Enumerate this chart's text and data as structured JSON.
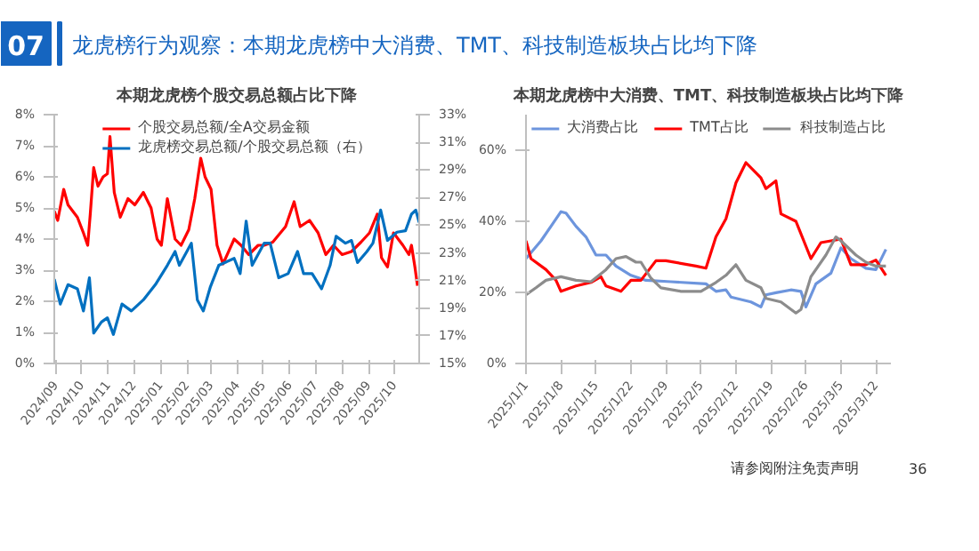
{
  "chart_data": [
    {
      "type": "other",
      "title": "龙虎榜行为观察：本期龙虎榜中大消费、TMT、科技制造板块占比均下降",
      "annotations": [
        "07"
      ]
    },
    {
      "type": "line",
      "title": "本期龙虎榜个股交易总额占比下降",
      "legend": "top",
      "marker": "none",
      "line_style": "solid",
      "xlim": [
        "2024-08-30",
        "2025-10-30"
      ],
      "xticks": [
        {
          "value": "2024-09-01",
          "label": "2024/09"
        },
        {
          "value": "2024-10-01",
          "label": "2024/10"
        },
        {
          "value": "2024-11-01",
          "label": "2024/11"
        },
        {
          "value": "2024-12-01",
          "label": "2024/12"
        },
        {
          "value": "2025-01-01",
          "label": "2025/01"
        },
        {
          "value": "2025-02-01",
          "label": "2025/02"
        },
        {
          "value": "2025-03-01",
          "label": "2025/03"
        },
        {
          "value": "2025-04-01",
          "label": "2025/04"
        },
        {
          "value": "2025-05-01",
          "label": "2025/05"
        },
        {
          "value": "2025-06-01",
          "label": "2025/06"
        },
        {
          "value": "2025-07-01",
          "label": "2025/07"
        },
        {
          "value": "2025-08-01",
          "label": "2025/08"
        },
        {
          "value": "2025-09-01",
          "label": "2025/09"
        },
        {
          "value": "2025-10-01",
          "label": "2025/10"
        }
      ],
      "ylim": [
        0,
        8
      ],
      "yticks": [
        {
          "value": 0,
          "label": "0%"
        },
        {
          "value": 1,
          "label": "1%"
        },
        {
          "value": 2,
          "label": "2%"
        },
        {
          "value": 3,
          "label": "3%"
        },
        {
          "value": 4,
          "label": "4%"
        },
        {
          "value": 5,
          "label": "5%"
        },
        {
          "value": 6,
          "label": "6%"
        },
        {
          "value": 7,
          "label": "7%"
        },
        {
          "value": 8,
          "label": "8%"
        }
      ],
      "y2lim": [
        15,
        33
      ],
      "y2ticks": [
        {
          "value": 15,
          "label": "15%"
        },
        {
          "value": 17,
          "label": "17%"
        },
        {
          "value": 19,
          "label": "19%"
        },
        {
          "value": 21,
          "label": "21%"
        },
        {
          "value": 23,
          "label": "23%"
        },
        {
          "value": 25,
          "label": "25%"
        },
        {
          "value": 27,
          "label": "27%"
        },
        {
          "value": 29,
          "label": "29%"
        },
        {
          "value": 31,
          "label": "31%"
        },
        {
          "value": 33,
          "label": "33%"
        }
      ],
      "series": [
        {
          "name": "个股交易总额/全A交易金额",
          "color": "#ff0000",
          "x": [
            "2024-08-30",
            "2024-09-03",
            "2024-09-10",
            "2024-09-15",
            "2024-09-26",
            "2024-10-03",
            "2024-10-08",
            "2024-10-11",
            "2024-10-15",
            "2024-10-20",
            "2024-10-26",
            "2024-10-31",
            "2024-11-03",
            "2024-11-08",
            "2024-11-15",
            "2024-11-24",
            "2024-12-02",
            "2024-12-12",
            "2024-12-21",
            "2024-12-28",
            "2025-01-02",
            "2025-01-09",
            "2025-01-18",
            "2025-01-25",
            "2025-02-03",
            "2025-02-10",
            "2025-02-17",
            "2025-02-22",
            "2025-03-01",
            "2025-03-08",
            "2025-03-15",
            "2025-03-28",
            "2025-04-05",
            "2025-04-14",
            "2025-04-25",
            "2025-05-02",
            "2025-05-12",
            "2025-05-27",
            "2025-06-06",
            "2025-06-13",
            "2025-06-24",
            "2025-07-04",
            "2025-07-13",
            "2025-07-22",
            "2025-08-01",
            "2025-08-12",
            "2025-08-23",
            "2025-09-02",
            "2025-09-11",
            "2025-09-16",
            "2025-09-23",
            "2025-09-30",
            "2025-10-11",
            "2025-10-18",
            "2025-10-21",
            "2025-10-25",
            "2025-10-28"
          ],
          "values": [
            4.9,
            4.6,
            5.6,
            5.1,
            4.7,
            4.2,
            3.8,
            4.8,
            6.3,
            5.7,
            6.0,
            6.1,
            7.3,
            5.5,
            4.7,
            5.3,
            5.1,
            5.5,
            5.0,
            4.0,
            3.8,
            5.3,
            4.0,
            3.8,
            4.3,
            5.3,
            6.6,
            6.0,
            5.6,
            3.8,
            3.2,
            4.0,
            3.8,
            3.5,
            3.8,
            3.8,
            3.9,
            4.4,
            5.2,
            4.4,
            4.6,
            4.2,
            3.5,
            3.8,
            3.5,
            3.6,
            3.9,
            4.2,
            4.8,
            3.4,
            3.1,
            4.2,
            3.8,
            3.5,
            3.8,
            3.1,
            2.5
          ]
        },
        {
          "name": "龙虎榜交易总额/个股交易总额（右）",
          "color": "#0070c0",
          "axis": "y2",
          "x": [
            "2024-08-30",
            "2024-09-06",
            "2024-09-15",
            "2024-09-26",
            "2024-10-03",
            "2024-10-10",
            "2024-10-15",
            "2024-10-24",
            "2024-10-31",
            "2024-11-07",
            "2024-11-17",
            "2024-11-28",
            "2024-12-12",
            "2024-12-26",
            "2025-01-09",
            "2025-01-18",
            "2025-01-23",
            "2025-02-06",
            "2025-02-13",
            "2025-02-20",
            "2025-02-28",
            "2025-03-10",
            "2025-03-17",
            "2025-03-28",
            "2025-04-04",
            "2025-04-11",
            "2025-04-18",
            "2025-05-02",
            "2025-05-09",
            "2025-05-19",
            "2025-05-30",
            "2025-06-10",
            "2025-06-17",
            "2025-06-27",
            "2025-07-08",
            "2025-07-18",
            "2025-07-25",
            "2025-08-05",
            "2025-08-12",
            "2025-08-19",
            "2025-08-30",
            "2025-09-06",
            "2025-09-15",
            "2025-09-23",
            "2025-10-04",
            "2025-10-14",
            "2025-10-21",
            "2025-10-26",
            "2025-10-30"
          ],
          "values": [
            21.1,
            19.3,
            20.7,
            20.4,
            18.8,
            21.2,
            17.2,
            18.0,
            18.3,
            17.1,
            19.3,
            18.8,
            19.6,
            20.7,
            22.1,
            23.1,
            22.1,
            23.7,
            19.6,
            18.8,
            20.5,
            22.1,
            22.3,
            22.6,
            21.5,
            25.3,
            22.1,
            23.7,
            23.7,
            21.2,
            21.5,
            23.1,
            21.5,
            21.5,
            20.4,
            22.1,
            24.2,
            23.7,
            23.9,
            22.3,
            23.1,
            23.7,
            26.1,
            23.9,
            24.5,
            24.6,
            25.8,
            26.1,
            25.2
          ]
        }
      ]
    },
    {
      "type": "line",
      "title": "本期龙虎榜中大消费、TMT、科技制造板块占比均下降",
      "legend": "top",
      "marker": "none",
      "line_style": "solid",
      "xlim": [
        "2025-01-01",
        "2025-03-15"
      ],
      "xticks": [
        {
          "value": "2025-01-01",
          "label": "2025/1/1"
        },
        {
          "value": "2025-01-08",
          "label": "2025/1/8"
        },
        {
          "value": "2025-01-15",
          "label": "2025/1/15"
        },
        {
          "value": "2025-01-22",
          "label": "2025/1/22"
        },
        {
          "value": "2025-01-29",
          "label": "2025/1/29"
        },
        {
          "value": "2025-02-05",
          "label": "2025/2/5"
        },
        {
          "value": "2025-02-12",
          "label": "2025/2/12"
        },
        {
          "value": "2025-02-19",
          "label": "2025/2/19"
        },
        {
          "value": "2025-02-26",
          "label": "2025/2/26"
        },
        {
          "value": "2025-03-05",
          "label": "2025/3/5"
        },
        {
          "value": "2025-03-12",
          "label": "2025/3/12"
        }
      ],
      "ylim": [
        0,
        70
      ],
      "yticks": [
        {
          "value": 0,
          "label": "0%"
        },
        {
          "value": 20,
          "label": "20%"
        },
        {
          "value": 40,
          "label": "40%"
        },
        {
          "value": 60,
          "label": "60%"
        }
      ],
      "series": [
        {
          "name": "大消费占比",
          "color": "#6d95dd",
          "x": [
            "2025-01-01",
            "2025-01-04",
            "2025-01-06",
            "2025-01-08",
            "2025-01-09",
            "2025-01-11",
            "2025-01-13",
            "2025-01-15",
            "2025-01-17",
            "2025-01-19",
            "2025-01-22",
            "2025-01-25",
            "2025-01-30",
            "2025-02-06",
            "2025-02-08",
            "2025-02-10",
            "2025-02-11",
            "2025-02-15",
            "2025-02-17",
            "2025-02-18",
            "2025-02-20",
            "2025-02-23",
            "2025-02-25",
            "2025-02-26",
            "2025-02-28",
            "2025-03-03",
            "2025-03-05",
            "2025-03-07",
            "2025-03-10",
            "2025-03-12",
            "2025-03-14"
          ],
          "values": [
            29.5,
            34.5,
            38.6,
            42.7,
            42.3,
            38.6,
            35.6,
            30.5,
            30.5,
            27.4,
            24.8,
            23.4,
            23.0,
            22.4,
            20.3,
            20.7,
            18.7,
            17.3,
            15.9,
            19.3,
            19.9,
            20.7,
            20.3,
            15.9,
            22.4,
            25.4,
            32.5,
            29.5,
            26.8,
            26.4,
            32.1
          ]
        },
        {
          "name": "TMT占比",
          "color": "#ff0000",
          "x": [
            "2025-01-01",
            "2025-01-02",
            "2025-01-05",
            "2025-01-07",
            "2025-01-08",
            "2025-01-11",
            "2025-01-14",
            "2025-01-16",
            "2025-01-17",
            "2025-01-20",
            "2025-01-22",
            "2025-01-24",
            "2025-01-27",
            "2025-01-29",
            "2025-02-04",
            "2025-02-06",
            "2025-02-08",
            "2025-02-10",
            "2025-02-12",
            "2025-02-14",
            "2025-02-17",
            "2025-02-18",
            "2025-02-20",
            "2025-02-21",
            "2025-02-24",
            "2025-02-27",
            "2025-03-01",
            "2025-03-05",
            "2025-03-07",
            "2025-03-10",
            "2025-03-12",
            "2025-03-14"
          ],
          "values": [
            34.5,
            29.5,
            26.4,
            23.4,
            20.3,
            21.8,
            22.8,
            24.4,
            21.8,
            20.3,
            23.4,
            23.4,
            28.9,
            28.9,
            27.4,
            26.8,
            35.6,
            40.7,
            50.8,
            56.5,
            52.2,
            49.2,
            51.4,
            42.1,
            40.0,
            29.5,
            34.0,
            35.0,
            27.8,
            27.8,
            29.1,
            24.8
          ]
        },
        {
          "name": "科技制造占比",
          "color": "#8c8c8c",
          "x": [
            "2025-01-01",
            "2025-01-03",
            "2025-01-05",
            "2025-01-08",
            "2025-01-11",
            "2025-01-14",
            "2025-01-17",
            "2025-01-19",
            "2025-01-21",
            "2025-01-23",
            "2025-01-24",
            "2025-01-26",
            "2025-01-28",
            "2025-02-01",
            "2025-02-05",
            "2025-02-08",
            "2025-02-10",
            "2025-02-12",
            "2025-02-14",
            "2025-02-17",
            "2025-02-18",
            "2025-02-21",
            "2025-02-24",
            "2025-02-25",
            "2025-02-27",
            "2025-03-02",
            "2025-03-04",
            "2025-03-05",
            "2025-03-08",
            "2025-03-10",
            "2025-03-12",
            "2025-03-14"
          ],
          "values": [
            19.3,
            21.3,
            23.4,
            24.4,
            23.4,
            23.0,
            26.4,
            29.5,
            30.1,
            28.5,
            28.5,
            24.0,
            21.3,
            20.3,
            20.3,
            22.8,
            24.8,
            27.8,
            23.4,
            21.3,
            18.3,
            17.3,
            14.2,
            15.2,
            24.4,
            30.5,
            35.6,
            34.5,
            30.5,
            28.5,
            27.4,
            27.4
          ]
        }
      ]
    },
    {
      "type": "other",
      "annotations": [
        "请参阅附注免责声明",
        "36"
      ]
    }
  ]
}
